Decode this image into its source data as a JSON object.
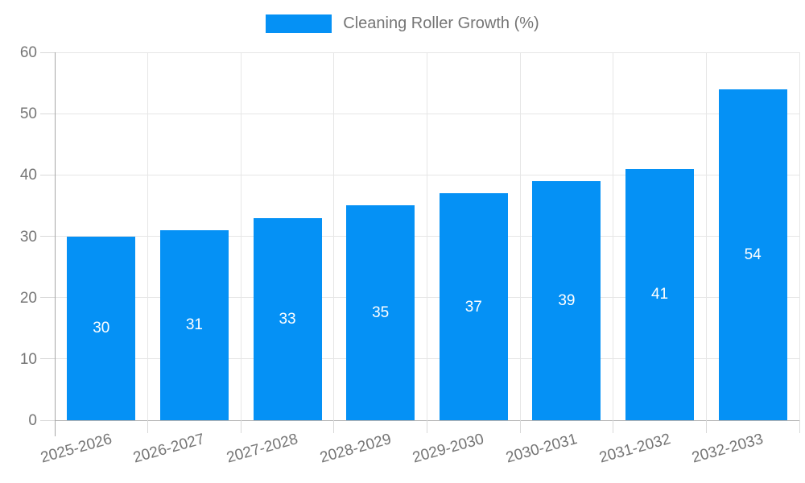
{
  "legend": {
    "label": "Cleaning Roller Growth (%)"
  },
  "chart_data": {
    "type": "bar",
    "title": "Cleaning Roller Growth (%)",
    "categories": [
      "2025-2026",
      "2026-2027",
      "2027-2028",
      "2028-2029",
      "2029-2030",
      "2030-2031",
      "2031-2032",
      "2032-2033"
    ],
    "values": [
      30,
      31,
      33,
      35,
      37,
      39,
      41,
      54
    ],
    "xlabel": "",
    "ylabel": "",
    "ylim": [
      0,
      60
    ],
    "yticks": [
      0,
      10,
      20,
      30,
      40,
      50,
      60
    ],
    "grid": true,
    "legend_position": "top-center",
    "bar_label_position": "center-inside",
    "xtick_rotation_deg": -15.5,
    "colors": {
      "bar": "#0591f5",
      "bar_label": "#ffffff",
      "text": "#757575",
      "gridline": "#e6e6e6",
      "axis": "#a6a6a6",
      "baseline": "#b3b3b3",
      "tick": "#d9d9d9"
    }
  }
}
